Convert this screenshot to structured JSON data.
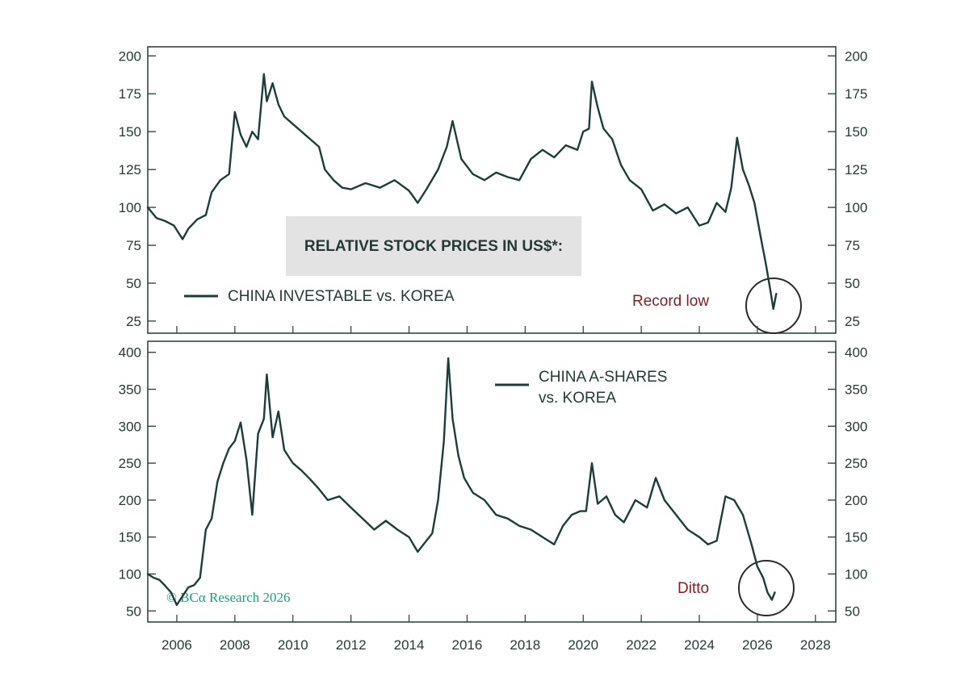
{
  "colors": {
    "line": "#1c3d38",
    "axis": "#253a36",
    "annotation": "#8b1a1f",
    "credit": "#13a57a",
    "title_box": "#e3e3e3",
    "circle": "#2a2a2a"
  },
  "title_box": {
    "text": "RELATIVE STOCK PRICES IN US$*:"
  },
  "credit": {
    "text": "© BCα Research 2026"
  },
  "x_axis": {
    "range": [
      2005.0,
      2028.7
    ],
    "tick_labels": [
      "2006",
      "2008",
      "2010",
      "2012",
      "2014",
      "2016",
      "2018",
      "2020",
      "2022",
      "2024",
      "2026",
      "2028"
    ]
  },
  "chart_data": [
    {
      "type": "line",
      "ylim": [
        17,
        206
      ],
      "y_tick_labels": [
        "25",
        "50",
        "75",
        "100",
        "125",
        "150",
        "175",
        "200"
      ],
      "legend": [
        "CHINA INVESTABLE vs. KOREA"
      ],
      "annotation": "Record low",
      "series": [
        {
          "name": "CHINA INVESTABLE vs. KOREA",
          "x": [
            2005.0,
            2005.3,
            2005.6,
            2005.9,
            2006.2,
            2006.4,
            2006.7,
            2007.0,
            2007.2,
            2007.5,
            2007.8,
            2008.0,
            2008.2,
            2008.4,
            2008.6,
            2008.8,
            2009.0,
            2009.1,
            2009.3,
            2009.5,
            2009.7,
            2010.0,
            2010.3,
            2010.6,
            2010.9,
            2011.1,
            2011.4,
            2011.7,
            2012.0,
            2012.5,
            2013.0,
            2013.5,
            2014.0,
            2014.3,
            2014.6,
            2015.0,
            2015.3,
            2015.5,
            2015.8,
            2016.2,
            2016.6,
            2017.0,
            2017.4,
            2017.8,
            2018.2,
            2018.6,
            2019.0,
            2019.4,
            2019.8,
            2020.0,
            2020.2,
            2020.3,
            2020.5,
            2020.7,
            2021.0,
            2021.3,
            2021.6,
            2022.0,
            2022.4,
            2022.8,
            2023.2,
            2023.6,
            2024.0,
            2024.3,
            2024.6,
            2024.9,
            2025.1,
            2025.3,
            2025.5,
            2025.7,
            2025.9,
            2026.1,
            2026.3,
            2026.45,
            2026.55,
            2026.65
          ],
          "y": [
            100,
            93,
            91,
            88,
            79,
            86,
            92,
            95,
            110,
            118,
            122,
            163,
            148,
            140,
            150,
            145,
            188,
            170,
            182,
            168,
            160,
            155,
            150,
            145,
            140,
            125,
            118,
            113,
            112,
            116,
            113,
            118,
            111,
            103,
            112,
            125,
            140,
            157,
            132,
            122,
            118,
            123,
            120,
            118,
            132,
            138,
            133,
            141,
            138,
            150,
            152,
            183,
            166,
            152,
            145,
            128,
            118,
            112,
            98,
            102,
            96,
            100,
            88,
            90,
            103,
            97,
            113,
            146,
            125,
            115,
            103,
            82,
            62,
            45,
            33,
            43
          ]
        }
      ]
    },
    {
      "type": "line",
      "ylim": [
        35,
        415
      ],
      "y_tick_labels": [
        "50",
        "100",
        "150",
        "200",
        "250",
        "300",
        "350",
        "400"
      ],
      "legend": [
        "CHINA A-SHARES vs. KOREA"
      ],
      "annotation": "Ditto",
      "series": [
        {
          "name": "CHINA A-SHARES vs. KOREA",
          "x": [
            2005.0,
            2005.2,
            2005.4,
            2005.6,
            2005.8,
            2006.0,
            2006.2,
            2006.4,
            2006.6,
            2006.8,
            2007.0,
            2007.2,
            2007.4,
            2007.6,
            2007.8,
            2008.0,
            2008.2,
            2008.4,
            2008.6,
            2008.8,
            2009.0,
            2009.1,
            2009.3,
            2009.5,
            2009.7,
            2010.0,
            2010.3,
            2010.6,
            2010.9,
            2011.2,
            2011.6,
            2012.0,
            2012.4,
            2012.8,
            2013.2,
            2013.6,
            2014.0,
            2014.3,
            2014.5,
            2014.8,
            2015.0,
            2015.2,
            2015.35,
            2015.5,
            2015.7,
            2015.9,
            2016.2,
            2016.6,
            2017.0,
            2017.4,
            2017.8,
            2018.2,
            2018.6,
            2019.0,
            2019.3,
            2019.6,
            2019.9,
            2020.1,
            2020.3,
            2020.5,
            2020.8,
            2021.1,
            2021.4,
            2021.8,
            2022.2,
            2022.5,
            2022.8,
            2023.2,
            2023.6,
            2024.0,
            2024.3,
            2024.6,
            2024.9,
            2025.2,
            2025.5,
            2025.8,
            2026.0,
            2026.2,
            2026.35,
            2026.5,
            2026.6
          ],
          "y": [
            100,
            95,
            92,
            84,
            75,
            58,
            70,
            82,
            85,
            95,
            160,
            175,
            225,
            250,
            270,
            280,
            305,
            255,
            180,
            290,
            310,
            370,
            285,
            320,
            268,
            250,
            240,
            228,
            215,
            200,
            205,
            190,
            175,
            160,
            172,
            160,
            150,
            130,
            140,
            155,
            200,
            280,
            392,
            310,
            260,
            230,
            210,
            200,
            180,
            175,
            165,
            160,
            150,
            140,
            165,
            180,
            185,
            185,
            250,
            195,
            205,
            180,
            170,
            200,
            190,
            230,
            200,
            180,
            160,
            150,
            140,
            145,
            205,
            200,
            180,
            140,
            110,
            95,
            75,
            65,
            75
          ]
        }
      ]
    }
  ]
}
